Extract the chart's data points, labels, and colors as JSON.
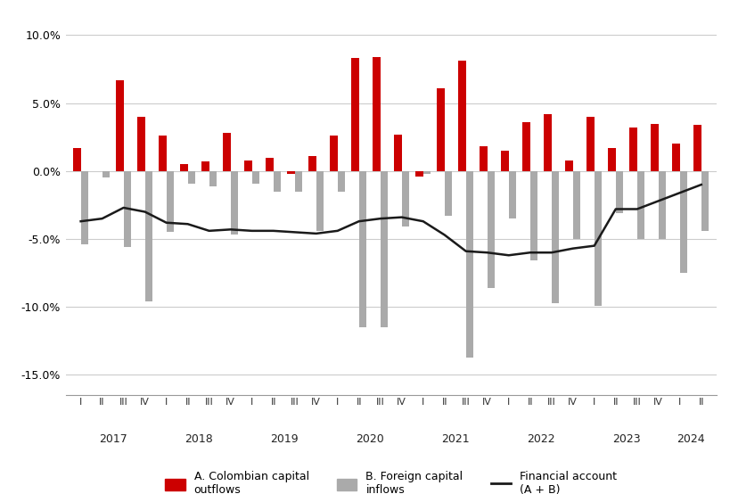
{
  "quarters": [
    "I",
    "II",
    "III",
    "IV",
    "I",
    "II",
    "III",
    "IV",
    "I",
    "II",
    "III",
    "IV",
    "I",
    "II",
    "III",
    "IV",
    "I",
    "II",
    "III",
    "IV",
    "I",
    "II",
    "III",
    "IV",
    "I",
    "II",
    "III",
    "IV",
    "I",
    "II"
  ],
  "years": [
    2017,
    2017,
    2017,
    2017,
    2018,
    2018,
    2018,
    2018,
    2019,
    2019,
    2019,
    2019,
    2020,
    2020,
    2020,
    2020,
    2021,
    2021,
    2021,
    2021,
    2022,
    2022,
    2022,
    2022,
    2023,
    2023,
    2023,
    2023,
    2024,
    2024
  ],
  "outflows": [
    1.7,
    0.0,
    6.7,
    4.0,
    2.6,
    0.5,
    0.7,
    2.8,
    0.8,
    1.0,
    -0.2,
    1.1,
    2.6,
    8.3,
    8.4,
    2.7,
    -0.4,
    6.1,
    8.1,
    1.8,
    1.5,
    3.6,
    4.2,
    0.8,
    4.0,
    1.7,
    3.2,
    3.5,
    2.0,
    3.4
  ],
  "inflows": [
    -5.4,
    -0.5,
    -5.6,
    -9.6,
    -4.5,
    -0.9,
    -1.1,
    -4.7,
    -0.9,
    -1.5,
    -1.5,
    -4.4,
    -1.5,
    -11.5,
    -11.5,
    -4.1,
    -0.2,
    -3.3,
    -13.7,
    -8.6,
    -3.5,
    -6.6,
    -9.7,
    -5.0,
    -9.9,
    -3.1,
    -5.0,
    -5.0,
    -7.5,
    -4.4
  ],
  "financial_account": [
    -3.7,
    -3.5,
    -2.7,
    -3.0,
    -3.8,
    -3.9,
    -4.4,
    -4.3,
    -4.4,
    -4.4,
    -4.5,
    -4.6,
    -4.4,
    -3.7,
    -3.5,
    -3.4,
    -3.7,
    -4.7,
    -5.9,
    -6.0,
    -6.2,
    -6.0,
    -6.0,
    -5.7,
    -5.5,
    -2.8,
    -2.8,
    -2.2,
    -1.6,
    -1.0
  ],
  "bar_color_outflows": "#cc0000",
  "bar_color_inflows": "#aaaaaa",
  "line_color": "#1a1a1a",
  "background_color": "#ffffff",
  "grid_color": "#cccccc",
  "ylim": [
    -16.5,
    11.5
  ],
  "yticks": [
    10.0,
    5.0,
    0.0,
    -5.0,
    -10.0,
    -15.0
  ],
  "legend_labels": [
    "A. Colombian capital\noutflows",
    "B. Foreign capital\ninflows",
    "Financial account\n(A + B)"
  ],
  "year_groups": {
    "2017": [
      0,
      1,
      2,
      3
    ],
    "2018": [
      4,
      5,
      6,
      7
    ],
    "2019": [
      8,
      9,
      10,
      11
    ],
    "2020": [
      12,
      13,
      14,
      15
    ],
    "2021": [
      16,
      17,
      18,
      19
    ],
    "2022": [
      20,
      21,
      22,
      23
    ],
    "2023": [
      24,
      25,
      26,
      27
    ],
    "2024": [
      28,
      29
    ]
  }
}
